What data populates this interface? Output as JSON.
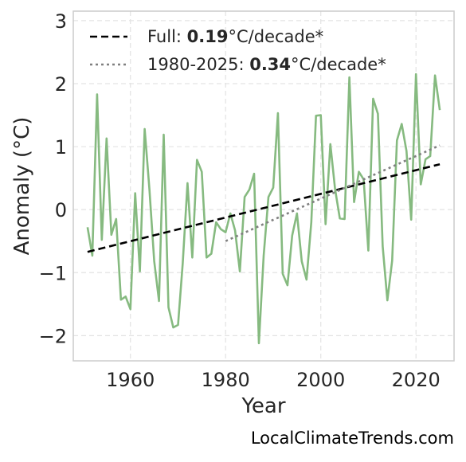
{
  "chart_data": {
    "type": "line",
    "xlabel": "Year",
    "ylabel": "Anomaly (°C)",
    "xlim": [
      1948,
      2028
    ],
    "ylim": [
      -2.4,
      3.15
    ],
    "x_ticks": [
      1960,
      1980,
      2000,
      2020
    ],
    "y_ticks": [
      -2,
      -1,
      0,
      1,
      2,
      3
    ],
    "y_tick_labels": [
      "−2",
      "−1",
      "0",
      "1",
      "2",
      "3"
    ],
    "grid": true,
    "legend_position": "top-left",
    "series": [
      {
        "color": "#86ba80",
        "style": "solid",
        "x": [
          1951,
          1952,
          1953,
          1954,
          1955,
          1956,
          1957,
          1958,
          1959,
          1960,
          1961,
          1962,
          1963,
          1964,
          1965,
          1966,
          1967,
          1968,
          1969,
          1970,
          1971,
          1972,
          1973,
          1974,
          1975,
          1976,
          1977,
          1978,
          1979,
          1980,
          1981,
          1982,
          1983,
          1984,
          1985,
          1986,
          1987,
          1988,
          1989,
          1990,
          1991,
          1992,
          1993,
          1994,
          1995,
          1996,
          1997,
          1998,
          1999,
          2000,
          2001,
          2002,
          2003,
          2004,
          2005,
          2006,
          2007,
          2008,
          2009,
          2010,
          2011,
          2012,
          2013,
          2014,
          2015,
          2016,
          2017,
          2018,
          2019,
          2020,
          2021,
          2022,
          2023,
          2024,
          2025
        ],
        "y": [
          -0.28,
          -0.73,
          1.83,
          -0.48,
          1.13,
          -0.4,
          -0.15,
          -1.43,
          -1.38,
          -1.58,
          0.26,
          -0.98,
          1.28,
          0.32,
          -0.82,
          -1.45,
          1.19,
          -1.55,
          -1.87,
          -1.83,
          -0.85,
          0.42,
          -0.76,
          0.79,
          0.6,
          -0.76,
          -0.7,
          -0.2,
          -0.31,
          -0.36,
          -0.06,
          -0.33,
          -0.98,
          0.2,
          0.32,
          0.57,
          -2.12,
          -0.73,
          0.2,
          0.35,
          1.53,
          -1.02,
          -1.2,
          -0.41,
          -0.06,
          -0.82,
          -1.11,
          -0.2,
          1.49,
          1.5,
          -0.23,
          1.04,
          0.33,
          -0.14,
          -0.15,
          2.1,
          0.12,
          0.6,
          0.48,
          -0.65,
          1.76,
          1.52,
          -0.58,
          -1.44,
          -0.81,
          1.1,
          1.36,
          0.93,
          -0.16,
          2.15,
          0.4,
          0.8,
          0.85,
          2.13,
          1.58
        ]
      },
      {
        "name": "Full",
        "color": "#000000",
        "style": "dashed",
        "x": [
          1951,
          2025
        ],
        "y": [
          -0.67,
          0.72
        ]
      },
      {
        "name": "1980-2025",
        "color": "#808080",
        "style": "dotted",
        "x": [
          1980,
          2025
        ],
        "y": [
          -0.5,
          1.02
        ]
      }
    ],
    "legend": [
      {
        "prefix": "Full: ",
        "value": "0.19",
        "suffix": "°C/decade*",
        "style": "dashed",
        "color": "#000000"
      },
      {
        "prefix": "1980-2025: ",
        "value": "0.34",
        "suffix": "°C/decade*",
        "style": "dotted",
        "color": "#808080"
      }
    ]
  },
  "watermark": "LocalClimateTrends.com"
}
